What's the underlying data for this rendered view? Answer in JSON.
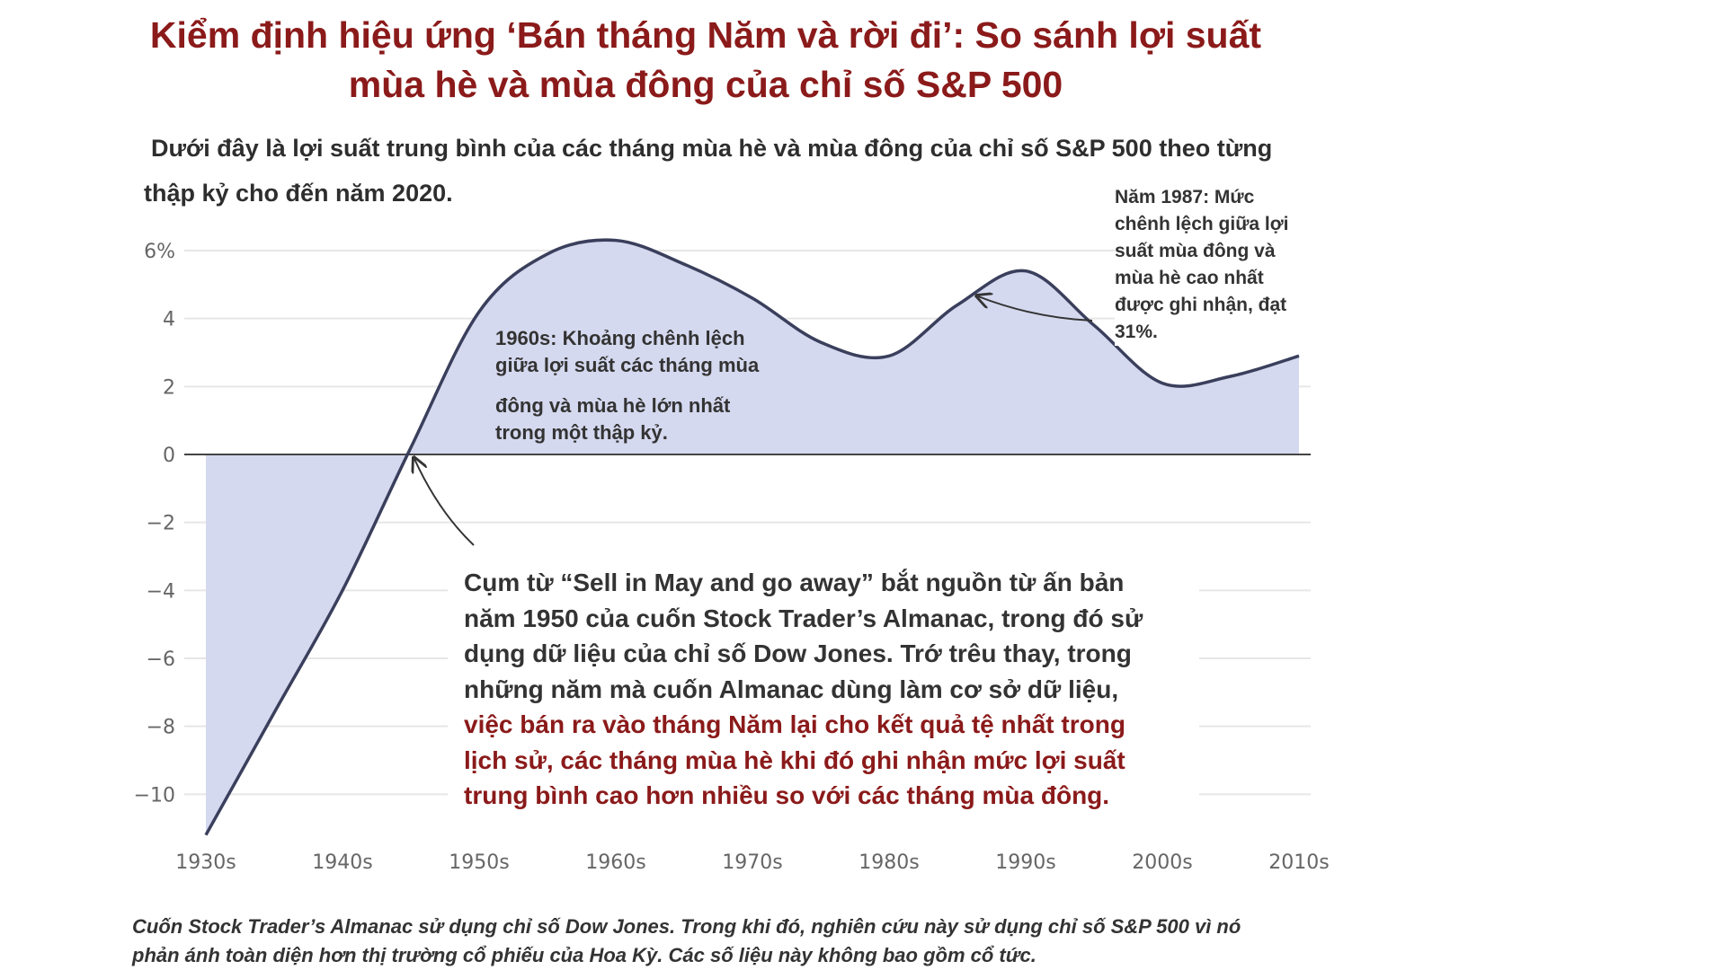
{
  "title": {
    "line1": "Kiểm định hiệu ứng ‘Bán tháng Năm và rời đi’: So sánh lợi suất",
    "line2": "mùa hè và mùa đông của chỉ số S&P 500"
  },
  "subtitle": {
    "line1": "Dưới đây là lợi suất trung bình của các tháng mùa hè và mùa đông của chỉ số S&P 500 theo từng",
    "line2": "thập kỷ cho đến năm 2020."
  },
  "annotations": {
    "a1960": {
      "line1": "1960s: Khoảng chênh lệch",
      "line2": "giữa lợi suất các tháng mùa",
      "line3": "đông và mùa hè lớn nhất",
      "line4": "trong một thập kỷ."
    },
    "a1987": {
      "line1": "Năm 1987: Mức",
      "line2": "chênh lệch giữa lợi",
      "line3": "suất mùa đông và",
      "line4": "mùa hè cao nhất",
      "line5": "được ghi nhận, đạt",
      "line6": "31%."
    },
    "main": {
      "line1": "Cụm từ “Sell in May and go away” bắt nguồn từ ấn bản",
      "line2": "năm 1950 của cuốn Stock Trader’s Almanac, trong đó sử",
      "line3": "dụng dữ liệu của chỉ số Dow Jones. Trớ trêu thay, trong",
      "line4": "những năm mà cuốn Almanac dùng làm cơ sở dữ liệu,",
      "line5": "việc bán ra vào tháng Năm lại cho kết quả tệ nhất trong",
      "line6": "lịch sử, các  tháng mùa hè khi đó ghi nhận mức lợi suất",
      "line7": "trung bình cao hơn nhiều so với các tháng mùa đông."
    }
  },
  "footnote": {
    "line1": "Cuốn Stock Trader’s Almanac sử dụng chỉ số Dow Jones. Trong khi đó, nghiên cứu này sử dụng chỉ số S&P 500 vì nó",
    "line2": "phản ánh toàn diện hơn thị trường cổ phiếu của Hoa Kỳ. Các số liệu này không bao gồm cổ tức."
  },
  "colors": {
    "title": "#8b1a1a",
    "area_fill": "#d5d9ef",
    "line": "#3a3f5c",
    "grid": "#e6e6e6",
    "zero_line": "#444444"
  },
  "chart_data": {
    "type": "area",
    "title": "",
    "xlabel": "",
    "ylabel": "",
    "x": [
      1930,
      1935,
      1940,
      1945,
      1950,
      1955,
      1960,
      1965,
      1970,
      1975,
      1980,
      1985,
      1990,
      1995,
      2000,
      2005,
      2010
    ],
    "series": [
      {
        "values": [
          -11.2,
          -7.6,
          -4.0,
          0.2,
          4.2,
          5.9,
          6.3,
          5.6,
          4.6,
          3.3,
          2.9,
          4.4,
          5.4,
          3.8,
          2.1,
          2.3,
          2.9
        ]
      }
    ],
    "x_tick_labels": [
      "1930s",
      "1940s",
      "1950s",
      "1960s",
      "1970s",
      "1980s",
      "1990s",
      "2000s",
      "2010s"
    ],
    "y_ticks": [
      6,
      4,
      2,
      0,
      -2,
      -4,
      -6,
      -8,
      -10
    ],
    "y_tick_labels": [
      "6%",
      "4",
      "2",
      "0",
      "−2",
      "−4",
      "−6",
      "−8",
      "−10"
    ],
    "xlim": [
      1930,
      2010
    ],
    "ylim": [
      -11.5,
      6.5
    ],
    "grid": true,
    "legend": "none"
  }
}
